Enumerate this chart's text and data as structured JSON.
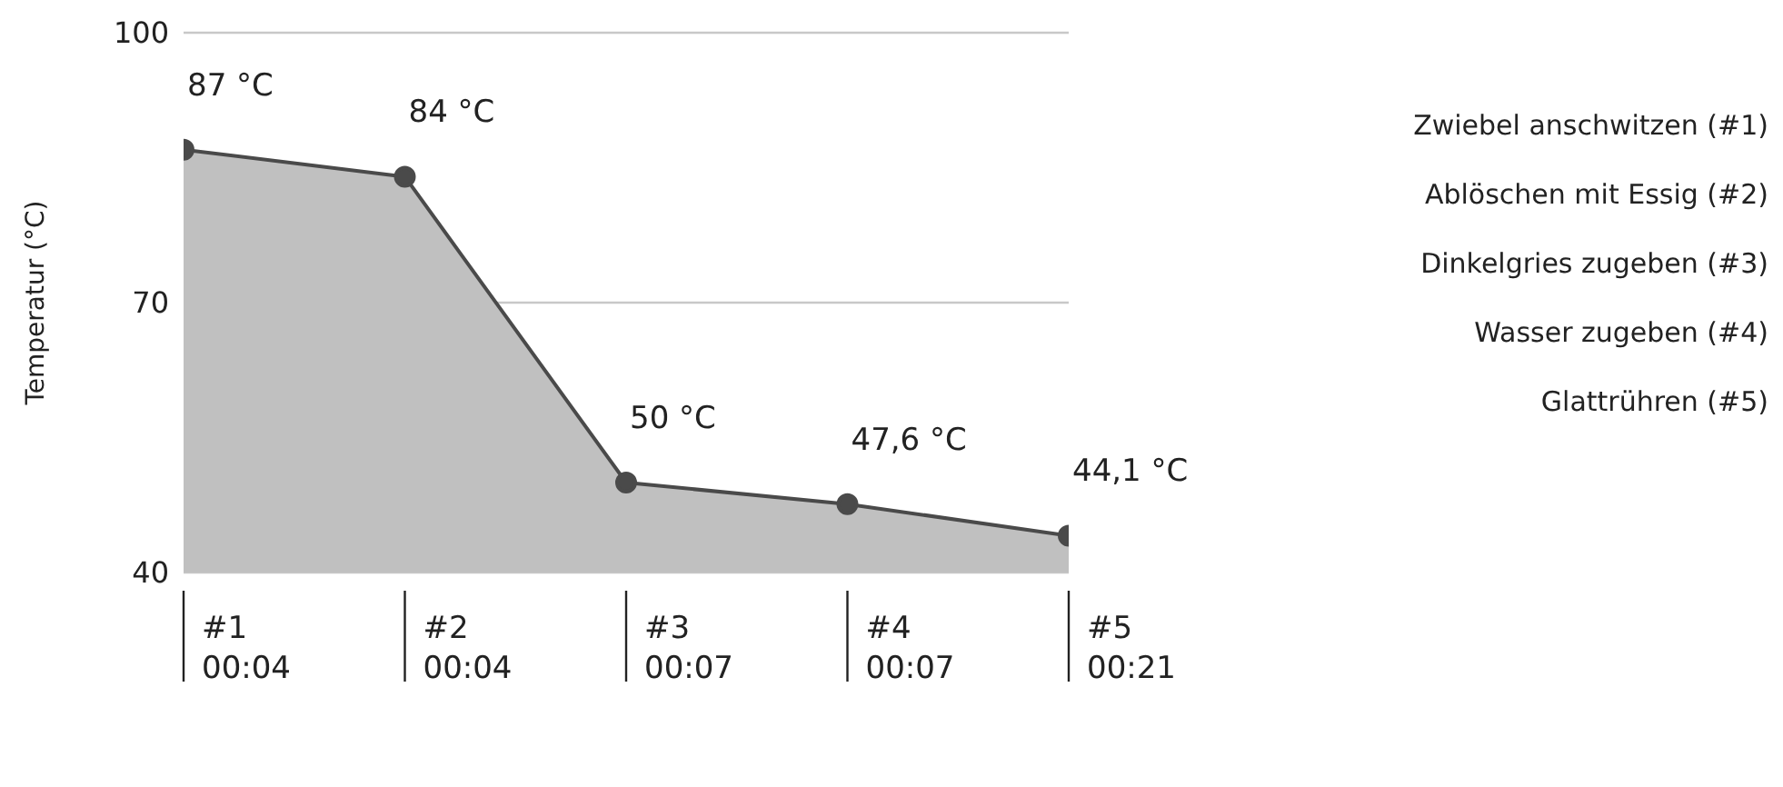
{
  "chart_data": {
    "type": "area",
    "ylabel": "Temperatur (°C)",
    "categories": [
      "#1\n00:04",
      "#2\n00:04",
      "#3\n00:07",
      "#4\n00:07",
      "#5\n00:21"
    ],
    "series": [
      {
        "color": "#4a4a4a",
        "values": [
          87,
          84,
          50,
          47.6,
          44.1
        ],
        "value_labels": [
          "87 °C",
          "84 °C",
          "50 °C",
          "47,6 °C",
          "44,1 °C"
        ]
      }
    ],
    "ylim": [
      40,
      100
    ],
    "yticks": [
      40,
      70,
      100
    ],
    "grid": "y",
    "marker": "circle",
    "annotations": [
      "Zwiebel anschwitzen (#1)",
      "Ablöschen mit Essig (#2)",
      "Dinkelgries zugeben (#3)",
      "Wasser zugeben (#4)",
      "Glattrühren (#5)"
    ]
  }
}
